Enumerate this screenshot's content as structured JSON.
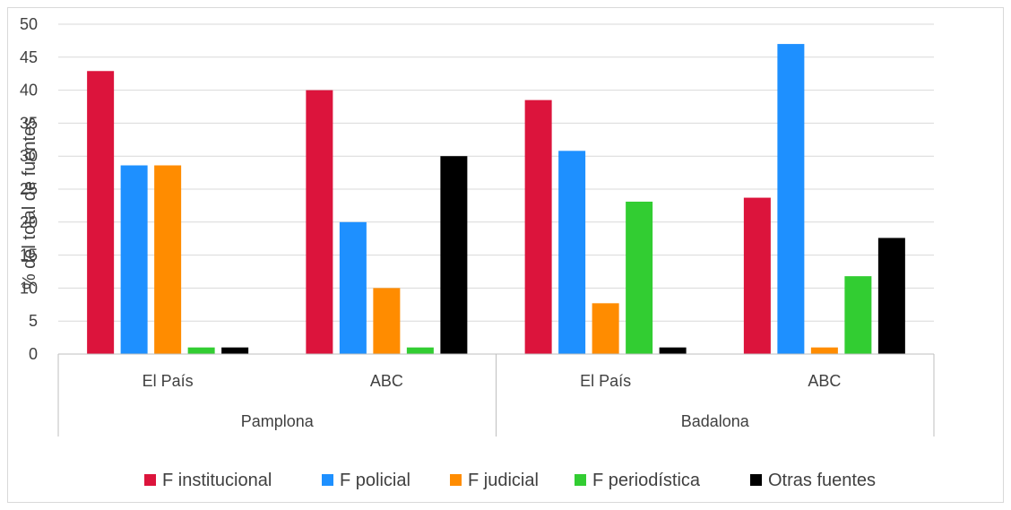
{
  "chart_data": {
    "type": "bar",
    "title": "",
    "ylabel": "% del total de fuentes",
    "ylim": [
      0,
      50
    ],
    "yticks": [
      0,
      5,
      10,
      15,
      20,
      25,
      30,
      35,
      40,
      45,
      50
    ],
    "grid": true,
    "legend_position": "bottom",
    "groups": [
      {
        "label": "Pamplona",
        "categories": [
          "El País",
          "ABC"
        ]
      },
      {
        "label": "Badalona",
        "categories": [
          "El País",
          "ABC"
        ]
      }
    ],
    "categories": [
      "El País",
      "ABC",
      "El País",
      "ABC"
    ],
    "series": [
      {
        "name": "F institucional",
        "color": "#DC143C",
        "values": [
          42.9,
          40.0,
          38.5,
          23.7
        ]
      },
      {
        "name": "F policial",
        "color": "#1E90FF",
        "values": [
          28.6,
          20.0,
          30.8,
          47.0
        ]
      },
      {
        "name": "F judicial",
        "color": "#FF8C00",
        "values": [
          28.6,
          10.0,
          7.7,
          1.0
        ]
      },
      {
        "name": "F periodística",
        "color": "#32CD32",
        "values": [
          1.0,
          1.0,
          23.1,
          11.8
        ]
      },
      {
        "name": "Otras fuentes",
        "color": "#000000",
        "values": [
          1.0,
          30.0,
          1.0,
          17.6
        ]
      }
    ]
  }
}
